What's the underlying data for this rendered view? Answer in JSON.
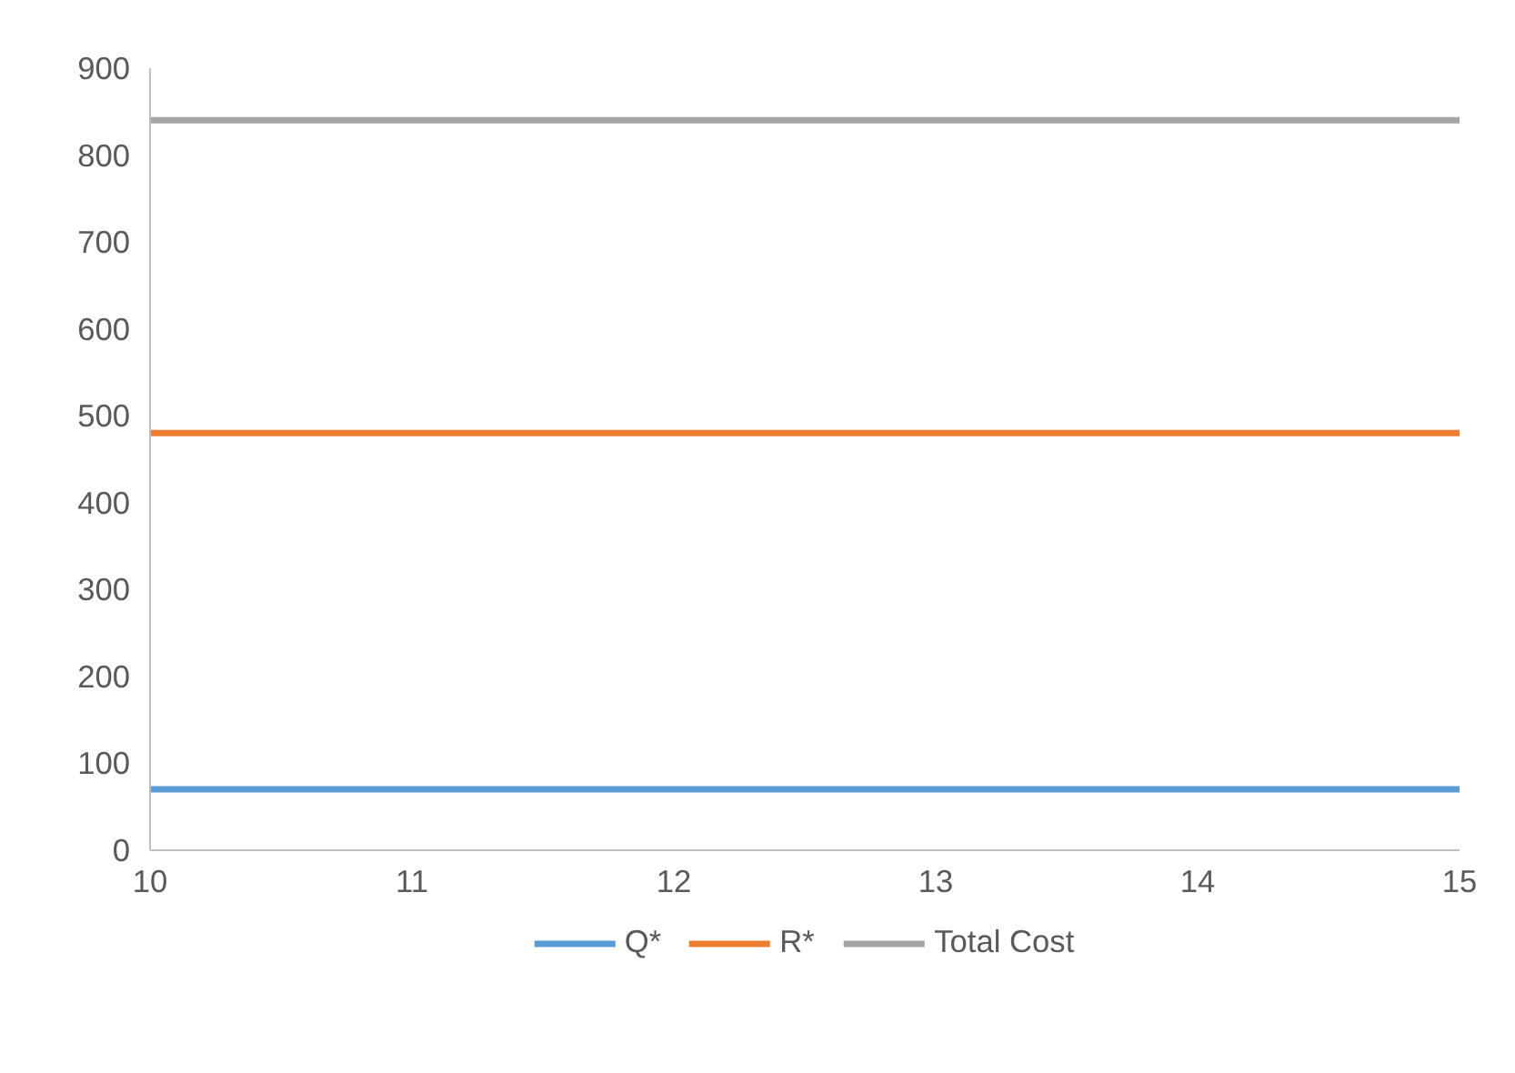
{
  "chart_data": {
    "type": "line",
    "x": [
      10,
      15
    ],
    "series": [
      {
        "name": "Q*",
        "color": "#5b9bd5",
        "values": [
          70,
          70
        ]
      },
      {
        "name": "R*",
        "color": "#ed7d31",
        "values": [
          480,
          480
        ]
      },
      {
        "name": "Total Cost",
        "color": "#a5a5a5",
        "values": [
          840,
          840
        ]
      }
    ],
    "xlim": [
      10,
      15
    ],
    "xticks": [
      10,
      11,
      12,
      13,
      14,
      15
    ],
    "ylim": [
      0,
      900
    ],
    "yticks": [
      0,
      100,
      200,
      300,
      400,
      500,
      600,
      700,
      800,
      900
    ],
    "grid": false,
    "legend": "bottom",
    "marker": "none",
    "line_style": "solid"
  }
}
